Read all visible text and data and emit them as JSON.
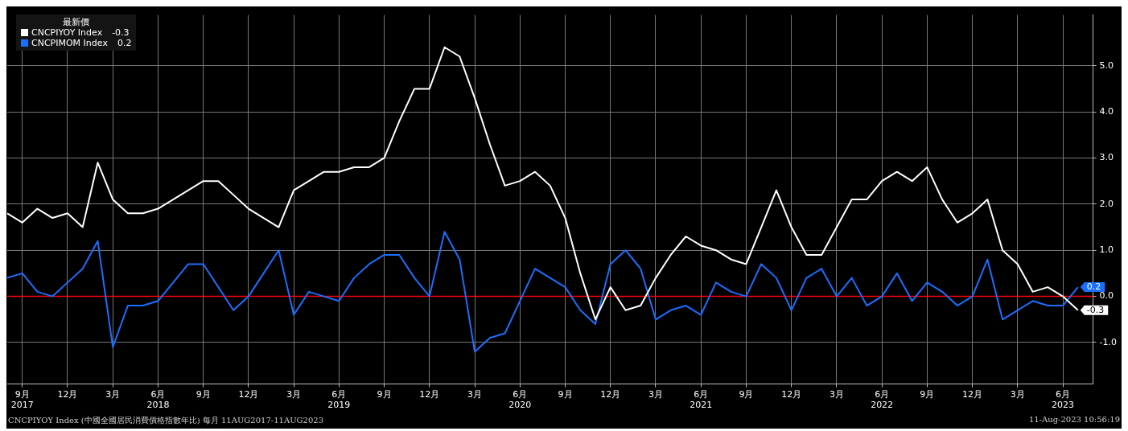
{
  "chart_data": {
    "type": "line",
    "x": [
      "2017-08",
      "2017-09",
      "2017-10",
      "2017-11",
      "2017-12",
      "2018-01",
      "2018-02",
      "2018-03",
      "2018-04",
      "2018-05",
      "2018-06",
      "2018-07",
      "2018-08",
      "2018-09",
      "2018-10",
      "2018-11",
      "2018-12",
      "2019-01",
      "2019-02",
      "2019-03",
      "2019-04",
      "2019-05",
      "2019-06",
      "2019-07",
      "2019-08",
      "2019-09",
      "2019-10",
      "2019-11",
      "2019-12",
      "2020-01",
      "2020-02",
      "2020-03",
      "2020-04",
      "2020-05",
      "2020-06",
      "2020-07",
      "2020-08",
      "2020-09",
      "2020-10",
      "2020-11",
      "2020-12",
      "2021-01",
      "2021-02",
      "2021-03",
      "2021-04",
      "2021-05",
      "2021-06",
      "2021-07",
      "2021-08",
      "2021-09",
      "2021-10",
      "2021-11",
      "2021-12",
      "2022-01",
      "2022-02",
      "2022-03",
      "2022-04",
      "2022-05",
      "2022-06",
      "2022-07",
      "2022-08",
      "2022-09",
      "2022-10",
      "2022-11",
      "2022-12",
      "2023-01",
      "2023-02",
      "2023-03",
      "2023-04",
      "2023-05",
      "2023-06",
      "2023-07"
    ],
    "series": [
      {
        "name": "CNCPIYOY Index",
        "color": "#ffffff",
        "values": [
          1.8,
          1.6,
          1.9,
          1.7,
          1.8,
          1.5,
          2.9,
          2.1,
          1.8,
          1.8,
          1.9,
          2.1,
          2.3,
          2.5,
          2.5,
          2.2,
          1.9,
          1.7,
          1.5,
          2.3,
          2.5,
          2.7,
          2.7,
          2.8,
          2.8,
          3.0,
          3.8,
          4.5,
          4.5,
          5.4,
          5.2,
          4.3,
          3.3,
          2.4,
          2.5,
          2.7,
          2.4,
          1.7,
          0.5,
          -0.5,
          0.2,
          -0.3,
          -0.2,
          0.4,
          0.9,
          1.3,
          1.1,
          1.0,
          0.8,
          0.7,
          1.5,
          2.3,
          1.5,
          0.9,
          0.9,
          1.5,
          2.1,
          2.1,
          2.5,
          2.7,
          2.5,
          2.8,
          2.1,
          1.6,
          1.8,
          2.1,
          1.0,
          0.7,
          0.1,
          0.2,
          0.0,
          -0.3
        ],
        "value_labels": [
          null,
          null,
          null,
          null,
          null,
          null,
          null,
          null,
          null,
          null,
          null,
          null,
          null,
          null,
          null,
          null,
          null,
          null,
          null,
          null,
          null,
          null,
          null,
          null,
          null,
          null,
          null,
          null,
          null,
          null,
          null,
          null,
          null,
          null,
          null,
          null,
          null,
          null,
          null,
          null,
          null,
          null,
          null,
          null,
          null,
          null,
          null,
          null,
          null,
          null,
          null,
          null,
          null,
          null,
          null,
          null,
          null,
          null,
          null,
          null,
          null,
          null,
          null,
          null,
          null,
          null,
          null,
          null,
          null,
          null,
          null,
          "-0.3"
        ]
      },
      {
        "name": "CNCPIMOM Index",
        "color": "#1a6fff",
        "values": [
          0.4,
          0.5,
          0.1,
          0.0,
          0.3,
          0.6,
          1.2,
          -1.1,
          -0.2,
          -0.2,
          -0.1,
          0.3,
          0.7,
          0.7,
          0.2,
          -0.3,
          0.0,
          0.5,
          1.0,
          -0.4,
          0.1,
          0.0,
          -0.1,
          0.4,
          0.7,
          0.9,
          0.9,
          0.4,
          0.0,
          1.4,
          0.8,
          -1.2,
          -0.9,
          -0.8,
          -0.1,
          0.6,
          0.4,
          0.2,
          -0.3,
          -0.6,
          0.7,
          1.0,
          0.6,
          -0.5,
          -0.3,
          -0.2,
          -0.4,
          0.3,
          0.1,
          0.0,
          0.7,
          0.4,
          -0.3,
          0.4,
          0.6,
          0.0,
          0.4,
          -0.2,
          0.0,
          0.5,
          -0.1,
          0.3,
          0.1,
          -0.2,
          0.0,
          0.8,
          -0.5,
          -0.3,
          -0.1,
          -0.2,
          -0.2,
          0.2
        ],
        "value_labels": [
          null,
          null,
          null,
          null,
          null,
          null,
          null,
          null,
          null,
          null,
          null,
          null,
          null,
          null,
          null,
          null,
          null,
          null,
          null,
          null,
          null,
          null,
          null,
          null,
          null,
          null,
          null,
          null,
          null,
          null,
          null,
          null,
          null,
          null,
          null,
          null,
          null,
          null,
          null,
          null,
          null,
          null,
          null,
          null,
          null,
          null,
          null,
          null,
          null,
          null,
          null,
          null,
          null,
          null,
          null,
          null,
          null,
          null,
          null,
          null,
          null,
          null,
          null,
          null,
          null,
          null,
          null,
          null,
          null,
          null,
          null,
          "0.2"
        ]
      }
    ],
    "legend_title": "最新價",
    "legend": "top left",
    "xlim": [
      "2017-08",
      "2023-08"
    ],
    "xticks": [
      {
        "value": "2017-09",
        "label": "9月\n2017"
      },
      {
        "value": "2017-12",
        "label": "12月"
      },
      {
        "value": "2018-03",
        "label": "3月"
      },
      {
        "value": "2018-06",
        "label": "6月\n2018"
      },
      {
        "value": "2018-09",
        "label": "9月"
      },
      {
        "value": "2018-12",
        "label": "12月"
      },
      {
        "value": "2019-03",
        "label": "3月"
      },
      {
        "value": "2019-06",
        "label": "6月\n2019"
      },
      {
        "value": "2019-09",
        "label": "9月"
      },
      {
        "value": "2019-12",
        "label": "12月"
      },
      {
        "value": "2020-03",
        "label": "3月"
      },
      {
        "value": "2020-06",
        "label": "6月\n2020"
      },
      {
        "value": "2020-09",
        "label": "9月"
      },
      {
        "value": "2020-12",
        "label": "12月"
      },
      {
        "value": "2021-03",
        "label": "3月"
      },
      {
        "value": "2021-06",
        "label": "6月\n2021"
      },
      {
        "value": "2021-09",
        "label": "9月"
      },
      {
        "value": "2021-12",
        "label": "12月"
      },
      {
        "value": "2022-03",
        "label": "3月"
      },
      {
        "value": "2022-06",
        "label": "6月\n2022"
      },
      {
        "value": "2022-09",
        "label": "9月"
      },
      {
        "value": "2022-12",
        "label": "12月"
      },
      {
        "value": "2023-03",
        "label": "3月"
      },
      {
        "value": "2023-06",
        "label": "6月\n2023"
      }
    ],
    "ylim": [
      -1.9,
      6.1
    ],
    "yticks": [
      {
        "value": -1,
        "label": "-1.0"
      },
      {
        "value": 0,
        "label": "0.0"
      },
      {
        "value": 1,
        "label": "1.0"
      },
      {
        "value": 2,
        "label": "2.0"
      },
      {
        "value": 3,
        "label": "3.0"
      },
      {
        "value": 4,
        "label": "4.0"
      },
      {
        "value": 5,
        "label": "5.0"
      }
    ],
    "grid": true,
    "ref_lines": [
      {
        "axis": "y",
        "value": 0,
        "color": "#ff0000"
      }
    ],
    "annotations": [
      "CNCPIYOY Index (中國全國居民消費價格指數年比)  每月 11AUG2017-11AUG2023",
      "11-Aug-2023 10:56:19"
    ]
  }
}
